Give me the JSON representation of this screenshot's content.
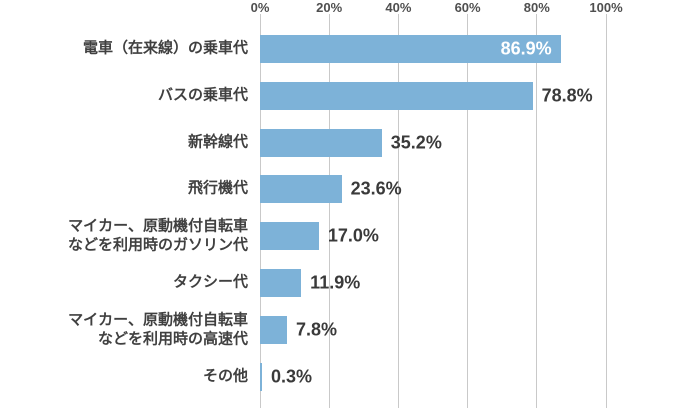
{
  "chart_data": {
    "type": "bar",
    "orientation": "horizontal",
    "categories": [
      "電車（在来線）の乗車代",
      "バスの乗車代",
      "新幹線代",
      "飛行機代",
      "マイカー、原動機付自転車\nなどを利用時のガソリン代",
      "タクシー代",
      "マイカー、原動機付自転車\nなどを利用時の高速代",
      "その他"
    ],
    "values": [
      86.9,
      78.8,
      35.2,
      23.6,
      17.0,
      11.9,
      7.8,
      0.3
    ],
    "value_labels": [
      "86.9%",
      "78.8%",
      "35.2%",
      "23.6%",
      "17.0%",
      "11.9%",
      "7.8%",
      "0.3%"
    ],
    "x_ticks": [
      {
        "label": "0%",
        "value": 0
      },
      {
        "label": "20%",
        "value": 20
      },
      {
        "label": "40%",
        "value": 40
      },
      {
        "label": "60%",
        "value": 60
      },
      {
        "label": "80%",
        "value": 80
      },
      {
        "label": "100%",
        "value": 100
      }
    ],
    "xlim": [
      0,
      100
    ],
    "grid": true,
    "bar_color": "#7db2d8",
    "grid_color": "#c9c9c9",
    "tick_color": "#4f4f4f",
    "category_color": "#404040",
    "value_color": "#3a3a3a",
    "value_inside_color": "#ffffff"
  }
}
